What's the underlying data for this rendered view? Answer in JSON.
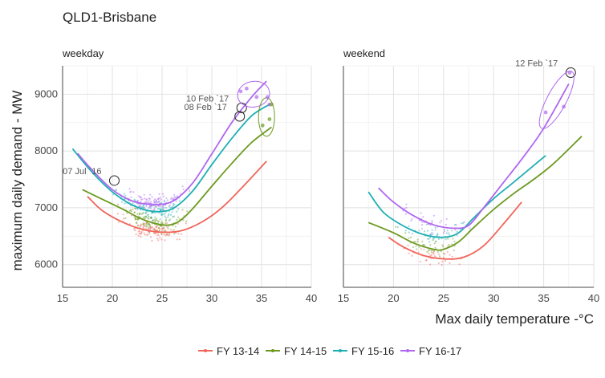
{
  "chart_data": {
    "type": "scatter",
    "title": "QLD1-Brisbane",
    "xlabel": "Max daily temperature -°C",
    "ylabel": "maximum daily demand - MW",
    "grid": true,
    "legend_position": "bottom",
    "colors": {
      "FY 13-14": "#F0655A",
      "FY 14-15": "#6C9A1F",
      "FY 15-16": "#1FAFB3",
      "FY 16-17": "#B067F0"
    },
    "panels": [
      {
        "label": "weekday",
        "xlim": [
          15,
          40
        ],
        "ylim": [
          5600,
          9500
        ],
        "xticks": [
          "15",
          "20",
          "25",
          "30",
          "35",
          "40"
        ],
        "yticks": [
          "6000",
          "7000",
          "8000",
          "9000"
        ],
        "series": [
          {
            "name": "FY 13-14",
            "x": [
              17.5,
              19,
              21,
              23,
              25,
              27,
              29,
              31,
              33,
              35.5
            ],
            "y": [
              7200,
              6950,
              6750,
              6620,
              6570,
              6600,
              6750,
              7000,
              7350,
              7820
            ]
          },
          {
            "name": "FY 14-15",
            "x": [
              17,
              19,
              21,
              23,
              25,
              26.5,
              28,
              30,
              32,
              34,
              36
            ],
            "y": [
              7320,
              7150,
              6980,
              6800,
              6700,
              6740,
              6970,
              7380,
              7780,
              8150,
              8420
            ]
          },
          {
            "name": "FY 15-16",
            "x": [
              16,
              18,
              20,
              22,
              24,
              26,
              28,
              30,
              32,
              34,
              35.8
            ],
            "y": [
              8040,
              7620,
              7280,
              7050,
              6940,
              6980,
              7280,
              7760,
              8220,
              8620,
              8820
            ]
          },
          {
            "name": "FY 16-17",
            "x": [
              16.5,
              18,
              20,
              22,
              24,
              26,
              28,
              30,
              32,
              34,
              35.5
            ],
            "y": [
              7960,
              7660,
              7320,
              7120,
              7060,
              7110,
              7420,
              7950,
              8500,
              8950,
              9230
            ]
          }
        ],
        "annotations": [
          {
            "text": "07 Jul `16",
            "x": 20.2,
            "y": 7480
          },
          {
            "text": "08 Feb `17",
            "x": 32.8,
            "y": 8610
          },
          {
            "text": "10 Feb `17",
            "x": 33.0,
            "y": 8760
          }
        ]
      },
      {
        "label": "weekend",
        "xlim": [
          15,
          40
        ],
        "ylim": [
          5600,
          9500
        ],
        "xticks": [
          "15",
          "20",
          "25",
          "30",
          "35",
          "40"
        ],
        "yticks": [],
        "series": [
          {
            "name": "FY 13-14",
            "x": [
              19.5,
              21,
              23,
              25,
              27,
              29,
              31,
              32.8
            ],
            "y": [
              6480,
              6310,
              6160,
              6100,
              6130,
              6330,
              6720,
              7100
            ]
          },
          {
            "name": "FY 14-15",
            "x": [
              17.5,
              20,
              22,
              24,
              25,
              26.5,
              28,
              30,
              32,
              34,
              36,
              38.8
            ],
            "y": [
              6740,
              6560,
              6380,
              6270,
              6270,
              6400,
              6650,
              6970,
              7250,
              7500,
              7780,
              8260
            ]
          },
          {
            "name": "FY 15-16",
            "x": [
              17.5,
              19,
              21,
              23,
              25,
              26.5,
              28,
              30,
              32,
              35.2
            ],
            "y": [
              7280,
              6920,
              6680,
              6530,
              6480,
              6560,
              6820,
              7160,
              7450,
              7920
            ]
          },
          {
            "name": "FY 16-17",
            "x": [
              18.5,
              20,
              22,
              24,
              26,
              27.5,
              29,
              31,
              33,
              35,
              37.5
            ],
            "y": [
              7350,
              7100,
              6860,
              6700,
              6640,
              6690,
              7000,
              7450,
              7900,
              8400,
              9180
            ]
          }
        ],
        "annotations": [
          {
            "text": "12 Feb `17",
            "x": 37.7,
            "y": 9380
          }
        ]
      }
    ]
  }
}
